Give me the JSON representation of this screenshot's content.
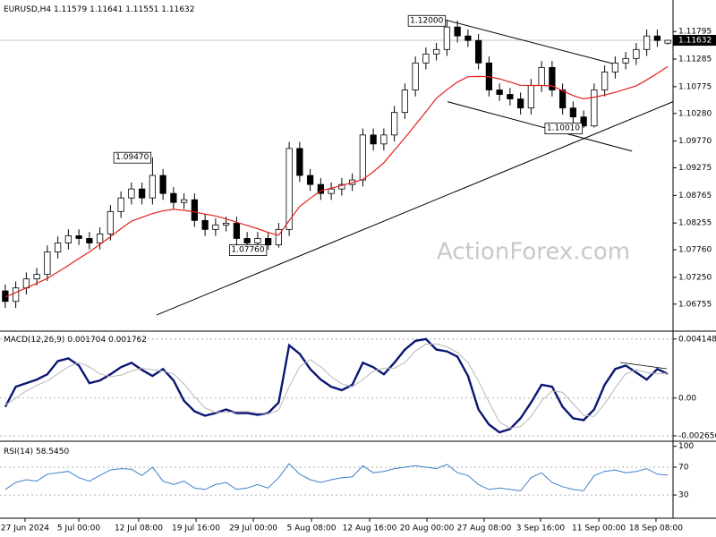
{
  "chart_data": [
    {
      "type": "candlestick",
      "title": "EURUSD,H4",
      "watermark": "ActionForex.com",
      "color": "#000000",
      "open": [
        1.07,
        1.06805,
        1.07055,
        1.07221,
        1.07304,
        1.0772,
        1.07886,
        1.08019,
        1.07969,
        1.07886,
        1.08053,
        1.08468,
        1.08718,
        1.08884,
        1.08718,
        1.09134,
        1.08801,
        1.08635,
        1.08685,
        1.08302,
        1.08136,
        1.08219,
        1.08252,
        1.07969,
        1.07886,
        1.07969,
        1.0785,
        1.08136,
        1.09633,
        1.09134,
        1.08967,
        1.08801,
        1.08884,
        1.08967,
        1.0905,
        1.09882,
        1.09716,
        1.09882,
        1.10298,
        1.10714,
        1.11213,
        1.11379,
        1.11462,
        1.11878,
        1.11712,
        1.11629,
        1.11213,
        1.10714,
        1.10631,
        1.10548,
        1.10381,
        1.10797,
        1.1113,
        1.10714,
        1.10381,
        1.10215,
        1.10049,
        1.10714,
        1.11047,
        1.11213,
        1.11296,
        1.11462,
        1.11712,
        1.11579
      ],
      "high": [
        1.0712,
        1.07175,
        1.07341,
        1.07424,
        1.0784,
        1.08006,
        1.08139,
        1.08139,
        1.08089,
        1.08173,
        1.08588,
        1.08838,
        1.09004,
        1.09004,
        1.0947,
        1.09254,
        1.08921,
        1.08805,
        1.08805,
        1.08422,
        1.08339,
        1.08372,
        1.08372,
        1.08089,
        1.08089,
        1.08089,
        1.08256,
        1.09753,
        1.09753,
        1.09254,
        1.09087,
        1.09004,
        1.09087,
        1.0917,
        1.10002,
        1.10002,
        1.10002,
        1.10418,
        1.10834,
        1.11333,
        1.11499,
        1.11582,
        1.12,
        1.11998,
        1.11832,
        1.11749,
        1.11333,
        1.10834,
        1.10751,
        1.10668,
        1.10917,
        1.1125,
        1.1125,
        1.10834,
        1.10501,
        1.10335,
        1.10834,
        1.11167,
        1.11333,
        1.11416,
        1.11582,
        1.11832,
        1.11832,
        1.11641
      ],
      "low": [
        1.06685,
        1.06685,
        1.06935,
        1.07101,
        1.07184,
        1.076,
        1.07766,
        1.07849,
        1.07766,
        1.07766,
        1.07933,
        1.08348,
        1.08598,
        1.08598,
        1.08598,
        1.08681,
        1.08515,
        1.08515,
        1.08182,
        1.08016,
        1.08016,
        1.08099,
        1.07849,
        1.07766,
        1.078,
        1.0776,
        1.078,
        1.08016,
        1.09014,
        1.08847,
        1.08681,
        1.08681,
        1.08764,
        1.08847,
        1.0893,
        1.09596,
        1.09596,
        1.09762,
        1.10178,
        1.10594,
        1.11093,
        1.11259,
        1.11342,
        1.11592,
        1.11509,
        1.11093,
        1.10594,
        1.10511,
        1.10428,
        1.10261,
        1.10261,
        1.10677,
        1.10594,
        1.10261,
        1.10095,
        1.1001,
        1.1002,
        1.10594,
        1.10927,
        1.11093,
        1.11176,
        1.11342,
        1.11509,
        1.11551
      ],
      "close": [
        1.06805,
        1.07055,
        1.07221,
        1.07304,
        1.0772,
        1.07886,
        1.08019,
        1.07969,
        1.07886,
        1.08053,
        1.08468,
        1.08718,
        1.08884,
        1.08718,
        1.09134,
        1.08801,
        1.08635,
        1.08685,
        1.08302,
        1.08136,
        1.08219,
        1.08252,
        1.07969,
        1.07886,
        1.07969,
        1.0785,
        1.08136,
        1.09633,
        1.09134,
        1.08967,
        1.08801,
        1.08884,
        1.08967,
        1.0905,
        1.09882,
        1.09716,
        1.09882,
        1.10298,
        1.10714,
        1.11213,
        1.11379,
        1.11462,
        1.11878,
        1.11712,
        1.11629,
        1.11213,
        1.10714,
        1.10631,
        1.10548,
        1.10381,
        1.10797,
        1.1113,
        1.10714,
        1.10381,
        1.10215,
        1.10049,
        1.10714,
        1.11047,
        1.11213,
        1.11296,
        1.11462,
        1.11712,
        1.11629,
        1.11632
      ],
      "ma": {
        "color": "#e3201c",
        "values": [
          1.06884,
          1.0697,
          1.07055,
          1.0714,
          1.0723,
          1.0735,
          1.0747,
          1.076,
          1.0772,
          1.0786,
          1.08,
          1.0815,
          1.0829,
          1.0836,
          1.0843,
          1.0848,
          1.0851,
          1.0849,
          1.0846,
          1.0842,
          1.08385,
          1.0833,
          1.0827,
          1.0821,
          1.0815,
          1.0808,
          1.0803,
          1.083,
          1.0856,
          1.0871,
          1.0885,
          1.089,
          1.0895,
          1.09,
          1.0906,
          1.092,
          1.0937,
          1.096,
          1.0983,
          1.1007,
          1.1031,
          1.1056,
          1.1072,
          1.1086,
          1.1096,
          1.10964,
          1.1096,
          1.1092,
          1.1086,
          1.108,
          1.10797,
          1.10797,
          1.1079,
          1.107,
          1.1061,
          1.1055,
          1.1058,
          1.1062,
          1.1067,
          1.1073,
          1.1079,
          1.109,
          1.1102,
          1.1115
        ]
      },
      "xlim": [
        -0.5,
        63.5
      ],
      "xticks": [
        {
          "value": 1.88,
          "label": "27 Jun 2024"
        },
        {
          "value": 6.99,
          "label": "5 Jul 00:00"
        },
        {
          "value": 12.69,
          "label": "12 Jul 08:00"
        },
        {
          "value": 18.14,
          "label": "19 Jul 16:00"
        },
        {
          "value": 23.59,
          "label": "29 Jul 00:00"
        },
        {
          "value": 29.12,
          "label": "5 Aug 08:00"
        },
        {
          "value": 34.65,
          "label": "12 Aug 16:00"
        },
        {
          "value": 40.1,
          "label": "20 Aug 00:00"
        },
        {
          "value": 45.54,
          "label": "27 Aug 08:00"
        },
        {
          "value": 50.9,
          "label": "3 Sep 16:00"
        },
        {
          "value": 56.44,
          "label": "11 Sep 00:00"
        },
        {
          "value": 61.88,
          "label": "18 Sep 08:00"
        }
      ],
      "ylim": [
        1.06256,
        1.12377
      ],
      "yticks": [
        1.06755,
        {
          "value": 1.0725,
          "label": "1.07250"
        },
        {
          "value": 1.0776,
          "label": "1.07760"
        },
        1.08255,
        1.08765,
        1.09275,
        {
          "value": 1.0977,
          "label": "1.09770"
        },
        {
          "value": 1.1028,
          "label": "1.10280"
        },
        1.10775,
        1.11285,
        1.11795
      ],
      "annotations": [
        {
          "x": 14,
          "value": 1.0947,
          "label": "1.09470"
        },
        {
          "x": 25,
          "value": 1.0776,
          "label": "1.07760"
        },
        {
          "x": 42,
          "value": 1.12,
          "label": "1.12000"
        },
        {
          "x": 55,
          "value": 1.1001,
          "label": "1.10010"
        }
      ],
      "trendlines": [
        {
          "x": [
            14.39,
            63.5
          ],
          "y": [
            1.06555,
            1.10497
          ]
        },
        {
          "x": [
            41.8,
            58.2
          ],
          "y": [
            1.12011,
            1.11179
          ]
        },
        {
          "x": [
            42.05,
            59.6
          ],
          "y": [
            1.10497,
            1.09583
          ]
        }
      ]
    },
    {
      "type": "line",
      "title": "MACD(12,26,9)",
      "ylim": [
        -0.00297,
        0.00464
      ],
      "yticks": [
        0.004148,
        {
          "value": 0,
          "label": "0.00"
        },
        -0.002656
      ],
      "series": [
        {
          "color": "#0b1675",
          "values": [
            -0.00062,
            0.0008,
            0.00105,
            0.0013,
            0.00167,
            0.0026,
            0.00279,
            0.00229,
            0.00105,
            0.00124,
            0.00167,
            0.00217,
            0.00248,
            0.00198,
            0.00155,
            0.00204,
            0.00124,
            -0.00019,
            -0.00093,
            -0.00124,
            -0.00105,
            -0.0008,
            -0.00105,
            -0.00105,
            -0.00118,
            -0.00105,
            -0.00031,
            0.00371,
            0.0031,
            0.00204,
            0.0013,
            0.0008,
            0.00056,
            0.00093,
            0.00248,
            0.00217,
            0.00167,
            0.00248,
            0.00341,
            0.00402,
            0.00415,
            0.00341,
            0.00328,
            0.00291,
            0.00155,
            -0.0008,
            -0.00186,
            -0.00241,
            -0.00217,
            -0.00142,
            -0.00031,
            0.00093,
            0.0008,
            -0.00062,
            -0.00142,
            -0.00155,
            -0.0008,
            0.00093,
            0.00204,
            0.00229,
            0.0018,
            0.0013,
            0.00204,
            0.001704
          ]
        },
        {
          "color": "#b8b8b8",
          "values": [
            -0.0005,
            0,
            0.0005,
            0.0009,
            0.0012,
            0.0017,
            0.0022,
            0.0025,
            0.0022,
            0.0017,
            0.0015,
            0.0016,
            0.0019,
            0.0021,
            0.002,
            0.0019,
            0.0017,
            0.001,
            0.0001,
            -0.0007,
            -0.001,
            -0.001,
            -0.00095,
            -0.00095,
            -0.00105,
            -0.0011,
            -0.00085,
            0.0008,
            0.0022,
            0.0027,
            0.0022,
            0.0015,
            0.001,
            0.0008,
            0.0013,
            0.0019,
            0.0021,
            0.0021,
            0.0025,
            0.0033,
            0.0038,
            0.0038,
            0.0036,
            0.0032,
            0.0025,
            0.0012,
            -0.0003,
            -0.0017,
            -0.0021,
            -0.002,
            -0.0013,
            -0.0002,
            0.0005,
            0.0004,
            -0.0004,
            -0.0012,
            -0.0013,
            -0.0004,
            0.0007,
            0.0017,
            0.002,
            0.0018,
            0.0017,
            0.001762
          ]
        }
      ]
    },
    {
      "type": "line",
      "title": "RSI(14)",
      "last_label": "58.5450",
      "ylim": [
        -2,
        106
      ],
      "yticks": [
        100,
        70,
        30
      ],
      "series": [
        {
          "color": "#3f7fcc",
          "values": [
            38,
            48,
            52,
            50,
            60,
            62,
            64,
            55,
            50,
            58,
            66,
            68,
            67,
            58,
            70,
            50,
            45,
            50,
            40,
            38,
            45,
            48,
            38,
            40,
            45,
            40,
            55,
            75,
            60,
            52,
            48,
            52,
            55,
            56,
            72,
            62,
            64,
            68,
            70,
            72,
            70,
            68,
            74,
            62,
            58,
            45,
            38,
            40,
            38,
            36,
            55,
            62,
            48,
            42,
            38,
            36,
            58,
            64,
            66,
            62,
            64,
            68,
            60,
            58.545
          ]
        }
      ]
    }
  ]
}
